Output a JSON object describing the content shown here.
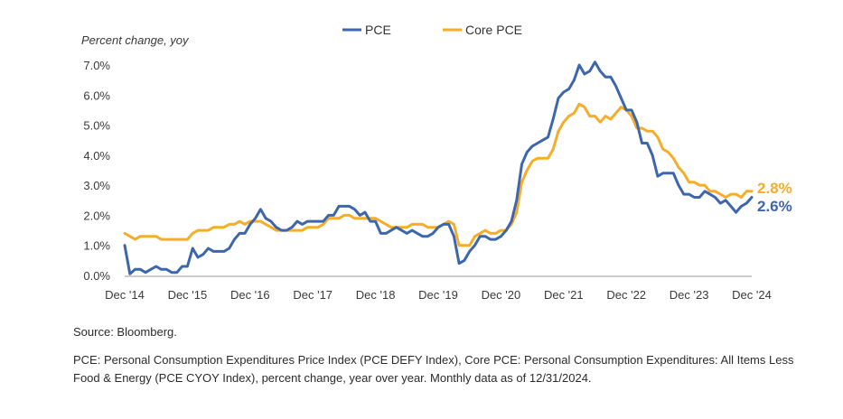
{
  "chart_data": {
    "type": "line",
    "ylabel": "Percent change, yoy",
    "ylim": [
      0,
      7.0
    ],
    "y_ticks": [
      "0.0%",
      "1.0%",
      "2.0%",
      "3.0%",
      "4.0%",
      "5.0%",
      "6.0%",
      "7.0%"
    ],
    "x_ticks": [
      "Dec '14",
      "Dec '15",
      "Dec '16",
      "Dec '17",
      "Dec '18",
      "Dec '19",
      "Dec '20",
      "Dec '21",
      "Dec '22",
      "Dec '23",
      "Dec '24"
    ],
    "x_range": [
      "2014-12",
      "2024-12"
    ],
    "grid": false,
    "legend": "top-center",
    "series": [
      {
        "name": "PCE",
        "color": "#3e66ad",
        "end_label": "2.6%",
        "points": [
          [
            "2014-12",
            1.0
          ],
          [
            "2015-01",
            0.05
          ],
          [
            "2015-02",
            0.2
          ],
          [
            "2015-03",
            0.2
          ],
          [
            "2015-04",
            0.1
          ],
          [
            "2015-05",
            0.2
          ],
          [
            "2015-06",
            0.3
          ],
          [
            "2015-07",
            0.2
          ],
          [
            "2015-08",
            0.2
          ],
          [
            "2015-09",
            0.1
          ],
          [
            "2015-10",
            0.1
          ],
          [
            "2015-11",
            0.3
          ],
          [
            "2015-12",
            0.3
          ],
          [
            "2016-01",
            0.9
          ],
          [
            "2016-02",
            0.6
          ],
          [
            "2016-03",
            0.7
          ],
          [
            "2016-04",
            0.9
          ],
          [
            "2016-05",
            0.8
          ],
          [
            "2016-06",
            0.8
          ],
          [
            "2016-07",
            0.8
          ],
          [
            "2016-08",
            0.9
          ],
          [
            "2016-09",
            1.2
          ],
          [
            "2016-10",
            1.4
          ],
          [
            "2016-11",
            1.4
          ],
          [
            "2016-12",
            1.7
          ],
          [
            "2017-01",
            1.9
          ],
          [
            "2017-02",
            2.2
          ],
          [
            "2017-03",
            1.9
          ],
          [
            "2017-04",
            1.8
          ],
          [
            "2017-05",
            1.6
          ],
          [
            "2017-06",
            1.5
          ],
          [
            "2017-07",
            1.5
          ],
          [
            "2017-08",
            1.6
          ],
          [
            "2017-09",
            1.8
          ],
          [
            "2017-10",
            1.7
          ],
          [
            "2017-11",
            1.8
          ],
          [
            "2017-12",
            1.8
          ],
          [
            "2018-01",
            1.8
          ],
          [
            "2018-02",
            1.8
          ],
          [
            "2018-03",
            2.0
          ],
          [
            "2018-04",
            2.0
          ],
          [
            "2018-05",
            2.3
          ],
          [
            "2018-06",
            2.3
          ],
          [
            "2018-07",
            2.3
          ],
          [
            "2018-08",
            2.2
          ],
          [
            "2018-09",
            2.0
          ],
          [
            "2018-10",
            2.1
          ],
          [
            "2018-11",
            1.8
          ],
          [
            "2018-12",
            1.8
          ],
          [
            "2019-01",
            1.4
          ],
          [
            "2019-02",
            1.4
          ],
          [
            "2019-03",
            1.5
          ],
          [
            "2019-04",
            1.6
          ],
          [
            "2019-05",
            1.5
          ],
          [
            "2019-06",
            1.4
          ],
          [
            "2019-07",
            1.5
          ],
          [
            "2019-08",
            1.4
          ],
          [
            "2019-09",
            1.3
          ],
          [
            "2019-10",
            1.3
          ],
          [
            "2019-11",
            1.4
          ],
          [
            "2019-12",
            1.6
          ],
          [
            "2020-01",
            1.7
          ],
          [
            "2020-02",
            1.7
          ],
          [
            "2020-03",
            1.3
          ],
          [
            "2020-04",
            0.4
          ],
          [
            "2020-05",
            0.5
          ],
          [
            "2020-06",
            0.8
          ],
          [
            "2020-07",
            1.0
          ],
          [
            "2020-08",
            1.3
          ],
          [
            "2020-09",
            1.3
          ],
          [
            "2020-10",
            1.2
          ],
          [
            "2020-11",
            1.2
          ],
          [
            "2020-12",
            1.3
          ],
          [
            "2021-01",
            1.5
          ],
          [
            "2021-02",
            1.8
          ],
          [
            "2021-03",
            2.5
          ],
          [
            "2021-04",
            3.7
          ],
          [
            "2021-05",
            4.1
          ],
          [
            "2021-06",
            4.3
          ],
          [
            "2021-07",
            4.4
          ],
          [
            "2021-08",
            4.5
          ],
          [
            "2021-09",
            4.6
          ],
          [
            "2021-10",
            5.2
          ],
          [
            "2021-11",
            5.9
          ],
          [
            "2021-12",
            6.1
          ],
          [
            "2022-01",
            6.2
          ],
          [
            "2022-02",
            6.5
          ],
          [
            "2022-03",
            7.0
          ],
          [
            "2022-04",
            6.7
          ],
          [
            "2022-05",
            6.8
          ],
          [
            "2022-06",
            7.1
          ],
          [
            "2022-07",
            6.8
          ],
          [
            "2022-08",
            6.6
          ],
          [
            "2022-09",
            6.6
          ],
          [
            "2022-10",
            6.3
          ],
          [
            "2022-11",
            5.9
          ],
          [
            "2022-12",
            5.5
          ],
          [
            "2023-01",
            5.5
          ],
          [
            "2023-02",
            5.1
          ],
          [
            "2023-03",
            4.4
          ],
          [
            "2023-04",
            4.4
          ],
          [
            "2023-05",
            4.0
          ],
          [
            "2023-06",
            3.3
          ],
          [
            "2023-07",
            3.4
          ],
          [
            "2023-08",
            3.4
          ],
          [
            "2023-09",
            3.4
          ],
          [
            "2023-10",
            3.0
          ],
          [
            "2023-11",
            2.7
          ],
          [
            "2023-12",
            2.7
          ],
          [
            "2024-01",
            2.6
          ],
          [
            "2024-02",
            2.6
          ],
          [
            "2024-03",
            2.8
          ],
          [
            "2024-04",
            2.7
          ],
          [
            "2024-05",
            2.6
          ],
          [
            "2024-06",
            2.4
          ],
          [
            "2024-07",
            2.5
          ],
          [
            "2024-08",
            2.3
          ],
          [
            "2024-09",
            2.1
          ],
          [
            "2024-10",
            2.3
          ],
          [
            "2024-11",
            2.4
          ],
          [
            "2024-12",
            2.6
          ]
        ]
      },
      {
        "name": "Core PCE",
        "color": "#f5ad2a",
        "end_label": "2.8%",
        "points": [
          [
            "2014-12",
            1.4
          ],
          [
            "2015-01",
            1.3
          ],
          [
            "2015-02",
            1.2
          ],
          [
            "2015-03",
            1.3
          ],
          [
            "2015-04",
            1.3
          ],
          [
            "2015-05",
            1.3
          ],
          [
            "2015-06",
            1.3
          ],
          [
            "2015-07",
            1.2
          ],
          [
            "2015-08",
            1.2
          ],
          [
            "2015-09",
            1.2
          ],
          [
            "2015-10",
            1.2
          ],
          [
            "2015-11",
            1.2
          ],
          [
            "2015-12",
            1.2
          ],
          [
            "2016-01",
            1.4
          ],
          [
            "2016-02",
            1.5
          ],
          [
            "2016-03",
            1.5
          ],
          [
            "2016-04",
            1.5
          ],
          [
            "2016-05",
            1.6
          ],
          [
            "2016-06",
            1.6
          ],
          [
            "2016-07",
            1.6
          ],
          [
            "2016-08",
            1.7
          ],
          [
            "2016-09",
            1.7
          ],
          [
            "2016-10",
            1.8
          ],
          [
            "2016-11",
            1.7
          ],
          [
            "2016-12",
            1.8
          ],
          [
            "2017-01",
            1.8
          ],
          [
            "2017-02",
            1.8
          ],
          [
            "2017-03",
            1.7
          ],
          [
            "2017-04",
            1.6
          ],
          [
            "2017-05",
            1.5
          ],
          [
            "2017-06",
            1.5
          ],
          [
            "2017-07",
            1.5
          ],
          [
            "2017-08",
            1.5
          ],
          [
            "2017-09",
            1.5
          ],
          [
            "2017-10",
            1.5
          ],
          [
            "2017-11",
            1.6
          ],
          [
            "2017-12",
            1.6
          ],
          [
            "2018-01",
            1.6
          ],
          [
            "2018-02",
            1.7
          ],
          [
            "2018-03",
            1.9
          ],
          [
            "2018-04",
            1.9
          ],
          [
            "2018-05",
            1.9
          ],
          [
            "2018-06",
            2.0
          ],
          [
            "2018-07",
            2.0
          ],
          [
            "2018-08",
            1.9
          ],
          [
            "2018-09",
            1.9
          ],
          [
            "2018-10",
            1.9
          ],
          [
            "2018-11",
            1.9
          ],
          [
            "2018-12",
            1.9
          ],
          [
            "2019-01",
            1.8
          ],
          [
            "2019-02",
            1.7
          ],
          [
            "2019-03",
            1.6
          ],
          [
            "2019-04",
            1.6
          ],
          [
            "2019-05",
            1.6
          ],
          [
            "2019-06",
            1.6
          ],
          [
            "2019-07",
            1.7
          ],
          [
            "2019-08",
            1.7
          ],
          [
            "2019-09",
            1.7
          ],
          [
            "2019-10",
            1.6
          ],
          [
            "2019-11",
            1.6
          ],
          [
            "2019-12",
            1.6
          ],
          [
            "2020-01",
            1.7
          ],
          [
            "2020-02",
            1.8
          ],
          [
            "2020-03",
            1.7
          ],
          [
            "2020-04",
            1.0
          ],
          [
            "2020-05",
            1.0
          ],
          [
            "2020-06",
            1.0
          ],
          [
            "2020-07",
            1.3
          ],
          [
            "2020-08",
            1.4
          ],
          [
            "2020-09",
            1.5
          ],
          [
            "2020-10",
            1.4
          ],
          [
            "2020-11",
            1.4
          ],
          [
            "2020-12",
            1.5
          ],
          [
            "2021-01",
            1.5
          ],
          [
            "2021-02",
            1.7
          ],
          [
            "2021-03",
            2.1
          ],
          [
            "2021-04",
            3.1
          ],
          [
            "2021-05",
            3.5
          ],
          [
            "2021-06",
            3.8
          ],
          [
            "2021-07",
            3.9
          ],
          [
            "2021-08",
            3.9
          ],
          [
            "2021-09",
            3.9
          ],
          [
            "2021-10",
            4.2
          ],
          [
            "2021-11",
            4.8
          ],
          [
            "2021-12",
            5.1
          ],
          [
            "2022-01",
            5.3
          ],
          [
            "2022-02",
            5.4
          ],
          [
            "2022-03",
            5.7
          ],
          [
            "2022-04",
            5.6
          ],
          [
            "2022-05",
            5.3
          ],
          [
            "2022-06",
            5.3
          ],
          [
            "2022-07",
            5.1
          ],
          [
            "2022-08",
            5.3
          ],
          [
            "2022-09",
            5.2
          ],
          [
            "2022-10",
            5.4
          ],
          [
            "2022-11",
            5.6
          ],
          [
            "2022-12",
            5.5
          ],
          [
            "2023-01",
            5.3
          ],
          [
            "2023-02",
            4.9
          ],
          [
            "2023-03",
            4.9
          ],
          [
            "2023-04",
            4.8
          ],
          [
            "2023-05",
            4.8
          ],
          [
            "2023-06",
            4.6
          ],
          [
            "2023-07",
            4.2
          ],
          [
            "2023-08",
            4.1
          ],
          [
            "2023-09",
            3.9
          ],
          [
            "2023-10",
            3.6
          ],
          [
            "2023-11",
            3.4
          ],
          [
            "2023-12",
            3.1
          ],
          [
            "2024-01",
            3.1
          ],
          [
            "2024-02",
            3.0
          ],
          [
            "2024-03",
            3.0
          ],
          [
            "2024-04",
            2.8
          ],
          [
            "2024-05",
            2.8
          ],
          [
            "2024-06",
            2.7
          ],
          [
            "2024-07",
            2.6
          ],
          [
            "2024-08",
            2.7
          ],
          [
            "2024-09",
            2.7
          ],
          [
            "2024-10",
            2.6
          ],
          [
            "2024-11",
            2.8
          ],
          [
            "2024-12",
            2.8
          ]
        ]
      }
    ]
  },
  "source": "Source: Bloomberg.",
  "footnote": "PCE: Personal Consumption Expenditures Price Index (PCE DEFY Index), Core PCE: Personal Consumption Expenditures: All Items Less Food & Energy (PCE CYOY Index), percent change, year over year. Monthly data as of 12/31/2024."
}
